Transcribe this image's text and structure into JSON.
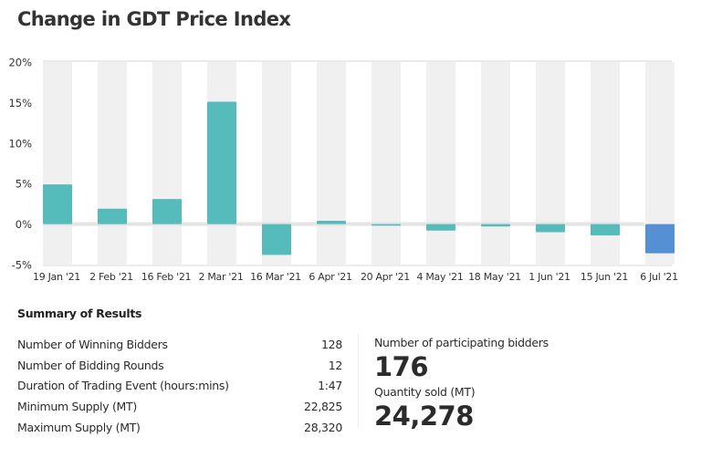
{
  "title": "Change in GDT Price Index",
  "chart_data": {
    "type": "bar",
    "title": "Change in GDT Price Index",
    "xlabel": "",
    "ylabel": "",
    "ylim": [
      -5,
      20
    ],
    "yticks": [
      -5,
      0,
      5,
      10,
      15,
      20
    ],
    "ytick_labels": [
      "-5%",
      "0%",
      "5%",
      "10%",
      "15%",
      "20%"
    ],
    "grid": "alternating vertical bands",
    "categories": [
      "19 Jan '21",
      "2 Feb '21",
      "16 Feb '21",
      "2 Mar '21",
      "16 Mar '21",
      "6 Apr '21",
      "20 Apr '21",
      "4 May '21",
      "18 May '21",
      "1 Jun '21",
      "15 Jun '21",
      "6 Jul '21"
    ],
    "values": [
      4.9,
      1.9,
      3.1,
      15.1,
      -3.8,
      0.4,
      -0.2,
      -0.8,
      -0.3,
      -1.0,
      -1.4,
      -3.6
    ],
    "highlight_index": 11,
    "colors": {
      "bar": "#55bbbb",
      "highlight": "#5590d4",
      "band": "#f0f0f0",
      "zero_line": "#e4e4e4"
    }
  },
  "summary": {
    "title": "Summary of Results",
    "rows": [
      {
        "label": "Number of Winning Bidders",
        "value": "128"
      },
      {
        "label": "Number of Bidding Rounds",
        "value": "12"
      },
      {
        "label": "Duration of Trading Event (hours:mins)",
        "value": "1:47"
      },
      {
        "label": "Minimum Supply (MT)",
        "value": "22,825"
      },
      {
        "label": "Maximum Supply (MT)",
        "value": "28,320"
      }
    ]
  },
  "stats": {
    "participating_label": "Number of participating bidders",
    "participating_value": "176",
    "quantity_label": "Quantity sold (MT)",
    "quantity_value": "24,278"
  }
}
